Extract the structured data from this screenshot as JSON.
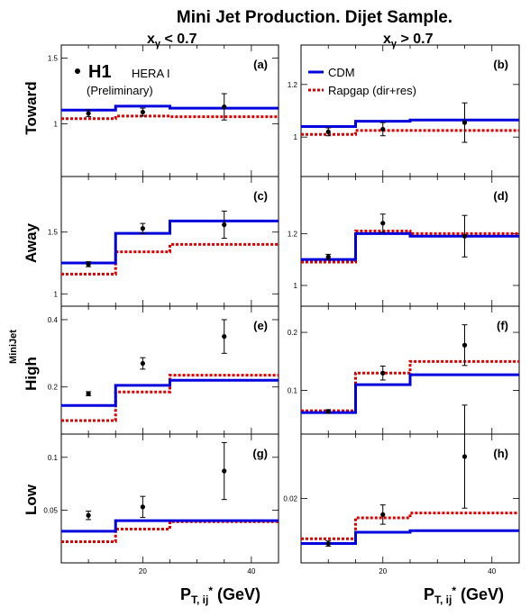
{
  "title": "Mini Jet Production.  Dijet Sample.",
  "columns": [
    {
      "label": "x",
      "sub": "γ",
      "cond": " < 0.7"
    },
    {
      "label": "x",
      "sub": "γ",
      "cond": " > 0.7"
    }
  ],
  "rows": [
    "Toward",
    "Away",
    "High",
    "Low"
  ],
  "xlabel": {
    "main": "P",
    "sub": "T, ij",
    "sup": "*",
    "unit": " (GeV)"
  },
  "ylabel_fragment": "MiniJet",
  "legend": {
    "experiment": "H1",
    "dataset": "HERA I",
    "status": "(Preliminary)",
    "cdm": "CDM",
    "rapgap": "Rapgap (dir+res)"
  },
  "colors": {
    "cdm": "#0000dd",
    "rapgap": "#dd0000",
    "data": "#000000"
  },
  "chart_data": [
    {
      "panel": "(a)",
      "type": "step+errorbar",
      "xlim": [
        5,
        45
      ],
      "ylim": [
        0.6,
        1.6
      ],
      "xticks": [
        20,
        40
      ],
      "yticks": [
        1,
        1.5
      ],
      "ytick_labels": [
        "1",
        "1.5"
      ],
      "bin_edges": [
        5,
        15,
        25,
        45
      ],
      "cdm": [
        1.105,
        1.135,
        1.12
      ],
      "rapgap": [
        1.04,
        1.06,
        1.055
      ],
      "data": [
        {
          "x": 10,
          "y": 1.08,
          "err": 0.025
        },
        {
          "x": 20,
          "y": 1.09,
          "err": 0.03
        },
        {
          "x": 35,
          "y": 1.13,
          "err": 0.1
        }
      ]
    },
    {
      "panel": "(b)",
      "type": "step+errorbar",
      "xlim": [
        5,
        45
      ],
      "ylim": [
        0.85,
        1.35
      ],
      "xticks": [
        20,
        40
      ],
      "yticks": [
        1,
        1.2
      ],
      "ytick_labels": [
        "1",
        "1.2"
      ],
      "bin_edges": [
        5,
        15,
        25,
        45
      ],
      "cdm": [
        1.04,
        1.06,
        1.065
      ],
      "rapgap": [
        1.01,
        1.025,
        1.025
      ],
      "data": [
        {
          "x": 10,
          "y": 1.02,
          "err": 0.015
        },
        {
          "x": 20,
          "y": 1.03,
          "err": 0.025
        },
        {
          "x": 35,
          "y": 1.055,
          "err": 0.075
        }
      ]
    },
    {
      "panel": "(c)",
      "type": "step+errorbar",
      "xlim": [
        5,
        45
      ],
      "ylim": [
        0.9,
        1.95
      ],
      "xticks": [
        20,
        40
      ],
      "yticks": [
        1,
        1.5
      ],
      "ytick_labels": [
        "1",
        "1.5"
      ],
      "bin_edges": [
        5,
        15,
        25,
        45
      ],
      "cdm": [
        1.25,
        1.49,
        1.59
      ],
      "rapgap": [
        1.16,
        1.34,
        1.4
      ],
      "data": [
        {
          "x": 10,
          "y": 1.24,
          "err": 0.02
        },
        {
          "x": 20,
          "y": 1.53,
          "err": 0.04
        },
        {
          "x": 35,
          "y": 1.56,
          "err": 0.11
        }
      ]
    },
    {
      "panel": "(d)",
      "type": "step+errorbar",
      "xlim": [
        5,
        45
      ],
      "ylim": [
        0.92,
        1.42
      ],
      "xticks": [
        20,
        40
      ],
      "yticks": [
        1,
        1.2
      ],
      "ytick_labels": [
        "1",
        "1.2"
      ],
      "bin_edges": [
        5,
        15,
        25,
        45
      ],
      "cdm": [
        1.1,
        1.2,
        1.19
      ],
      "rapgap": [
        1.09,
        1.21,
        1.2
      ],
      "data": [
        {
          "x": 10,
          "y": 1.11,
          "err": 0.01
        },
        {
          "x": 20,
          "y": 1.24,
          "err": 0.035
        },
        {
          "x": 35,
          "y": 1.19,
          "err": 0.08
        }
      ]
    },
    {
      "panel": "(e)",
      "type": "step+errorbar",
      "xlim": [
        5,
        45
      ],
      "ylim": [
        0.06,
        0.44
      ],
      "xticks": [
        20,
        40
      ],
      "yticks": [
        0.2,
        0.4
      ],
      "ytick_labels": [
        "0.2",
        "0.4"
      ],
      "bin_edges": [
        5,
        15,
        25,
        45
      ],
      "cdm": [
        0.145,
        0.205,
        0.22
      ],
      "rapgap": [
        0.1,
        0.185,
        0.235
      ],
      "data": [
        {
          "x": 10,
          "y": 0.18,
          "err": 0.006
        },
        {
          "x": 20,
          "y": 0.27,
          "err": 0.017
        },
        {
          "x": 35,
          "y": 0.35,
          "err": 0.05
        }
      ]
    },
    {
      "panel": "(f)",
      "type": "step+errorbar",
      "xlim": [
        5,
        45
      ],
      "ylim": [
        0.025,
        0.245
      ],
      "xticks": [
        20,
        40
      ],
      "yticks": [
        0.1,
        0.2
      ],
      "ytick_labels": [
        "0.1",
        "0.2"
      ],
      "bin_edges": [
        5,
        15,
        25,
        45
      ],
      "cdm": [
        0.062,
        0.11,
        0.127
      ],
      "rapgap": [
        0.065,
        0.13,
        0.15
      ],
      "data": [
        {
          "x": 10,
          "y": 0.064,
          "err": 0.003
        },
        {
          "x": 20,
          "y": 0.13,
          "err": 0.012
        },
        {
          "x": 35,
          "y": 0.178,
          "err": 0.035
        }
      ]
    },
    {
      "panel": "(g)",
      "type": "step+errorbar",
      "xlim": [
        5,
        45
      ],
      "ylim": [
        0.0,
        0.122
      ],
      "xticks": [
        20,
        40
      ],
      "yticks": [
        0.05,
        0.1
      ],
      "ytick_labels": [
        "0.05",
        "0.1"
      ],
      "bin_edges": [
        5,
        15,
        25,
        45
      ],
      "cdm": [
        0.03,
        0.04,
        0.04
      ],
      "rapgap": [
        0.02,
        0.032,
        0.039
      ],
      "data": [
        {
          "x": 10,
          "y": 0.045,
          "err": 0.004
        },
        {
          "x": 20,
          "y": 0.053,
          "err": 0.01
        },
        {
          "x": 35,
          "y": 0.087,
          "err": 0.027
        }
      ]
    },
    {
      "panel": "(h)",
      "type": "step+errorbar",
      "xlim": [
        5,
        45
      ],
      "ylim": [
        0.0,
        0.04
      ],
      "xticks": [
        20,
        40
      ],
      "yticks": [
        0.02
      ],
      "ytick_labels": [
        "0.02"
      ],
      "bin_edges": [
        5,
        15,
        25,
        45
      ],
      "cdm": [
        0.006,
        0.0095,
        0.01
      ],
      "rapgap": [
        0.0075,
        0.014,
        0.0155
      ],
      "data": [
        {
          "x": 10,
          "y": 0.006,
          "err": 0.0008
        },
        {
          "x": 20,
          "y": 0.015,
          "err": 0.003
        },
        {
          "x": 35,
          "y": 0.033,
          "err": 0.016
        }
      ]
    }
  ]
}
